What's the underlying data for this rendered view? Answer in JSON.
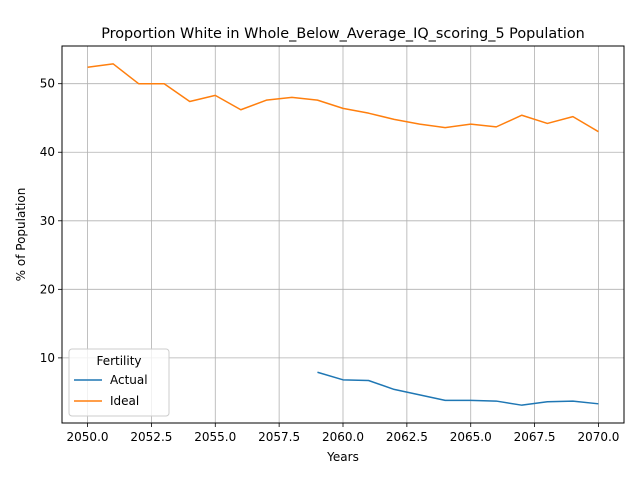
{
  "chart_data": {
    "type": "line",
    "title": "Proportion White in Whole_Below_Average_IQ_scoring_5 Population",
    "xlabel": "Years",
    "ylabel": "% of Population",
    "xlim": [
      2049,
      2071
    ],
    "ylim": [
      0.5,
      55.5
    ],
    "xticks": [
      2050.0,
      2052.5,
      2055.0,
      2057.5,
      2060.0,
      2062.5,
      2065.0,
      2067.5,
      2070.0
    ],
    "xtick_labels": [
      "2050.0",
      "2052.5",
      "2055.0",
      "2057.5",
      "2060.0",
      "2062.5",
      "2065.0",
      "2067.5",
      "2070.0"
    ],
    "yticks": [
      10,
      20,
      30,
      40,
      50
    ],
    "ytick_labels": [
      "10",
      "20",
      "30",
      "40",
      "50"
    ],
    "grid": true,
    "legend": {
      "title": "Fertility",
      "placement": "lower-left"
    },
    "series": [
      {
        "name": "Actual",
        "color": "#1f77b4",
        "x": [
          2059,
          2060,
          2061,
          2062,
          2063,
          2064,
          2065,
          2066,
          2067,
          2068,
          2069,
          2070
        ],
        "values": [
          7.9,
          6.8,
          6.7,
          5.4,
          4.6,
          3.8,
          3.8,
          3.7,
          3.1,
          3.6,
          3.7,
          3.3
        ]
      },
      {
        "name": "Ideal",
        "color": "#ff7f0e",
        "x": [
          2050,
          2051,
          2052,
          2053,
          2054,
          2055,
          2056,
          2057,
          2058,
          2059,
          2060,
          2061,
          2062,
          2063,
          2064,
          2065,
          2066,
          2067,
          2068,
          2069,
          2070
        ],
        "values": [
          52.4,
          52.9,
          50.0,
          50.0,
          47.4,
          48.3,
          46.2,
          47.6,
          48.0,
          47.6,
          46.4,
          45.7,
          44.8,
          44.1,
          43.6,
          44.1,
          43.7,
          45.4,
          44.2,
          45.2,
          43.0
        ]
      }
    ]
  }
}
